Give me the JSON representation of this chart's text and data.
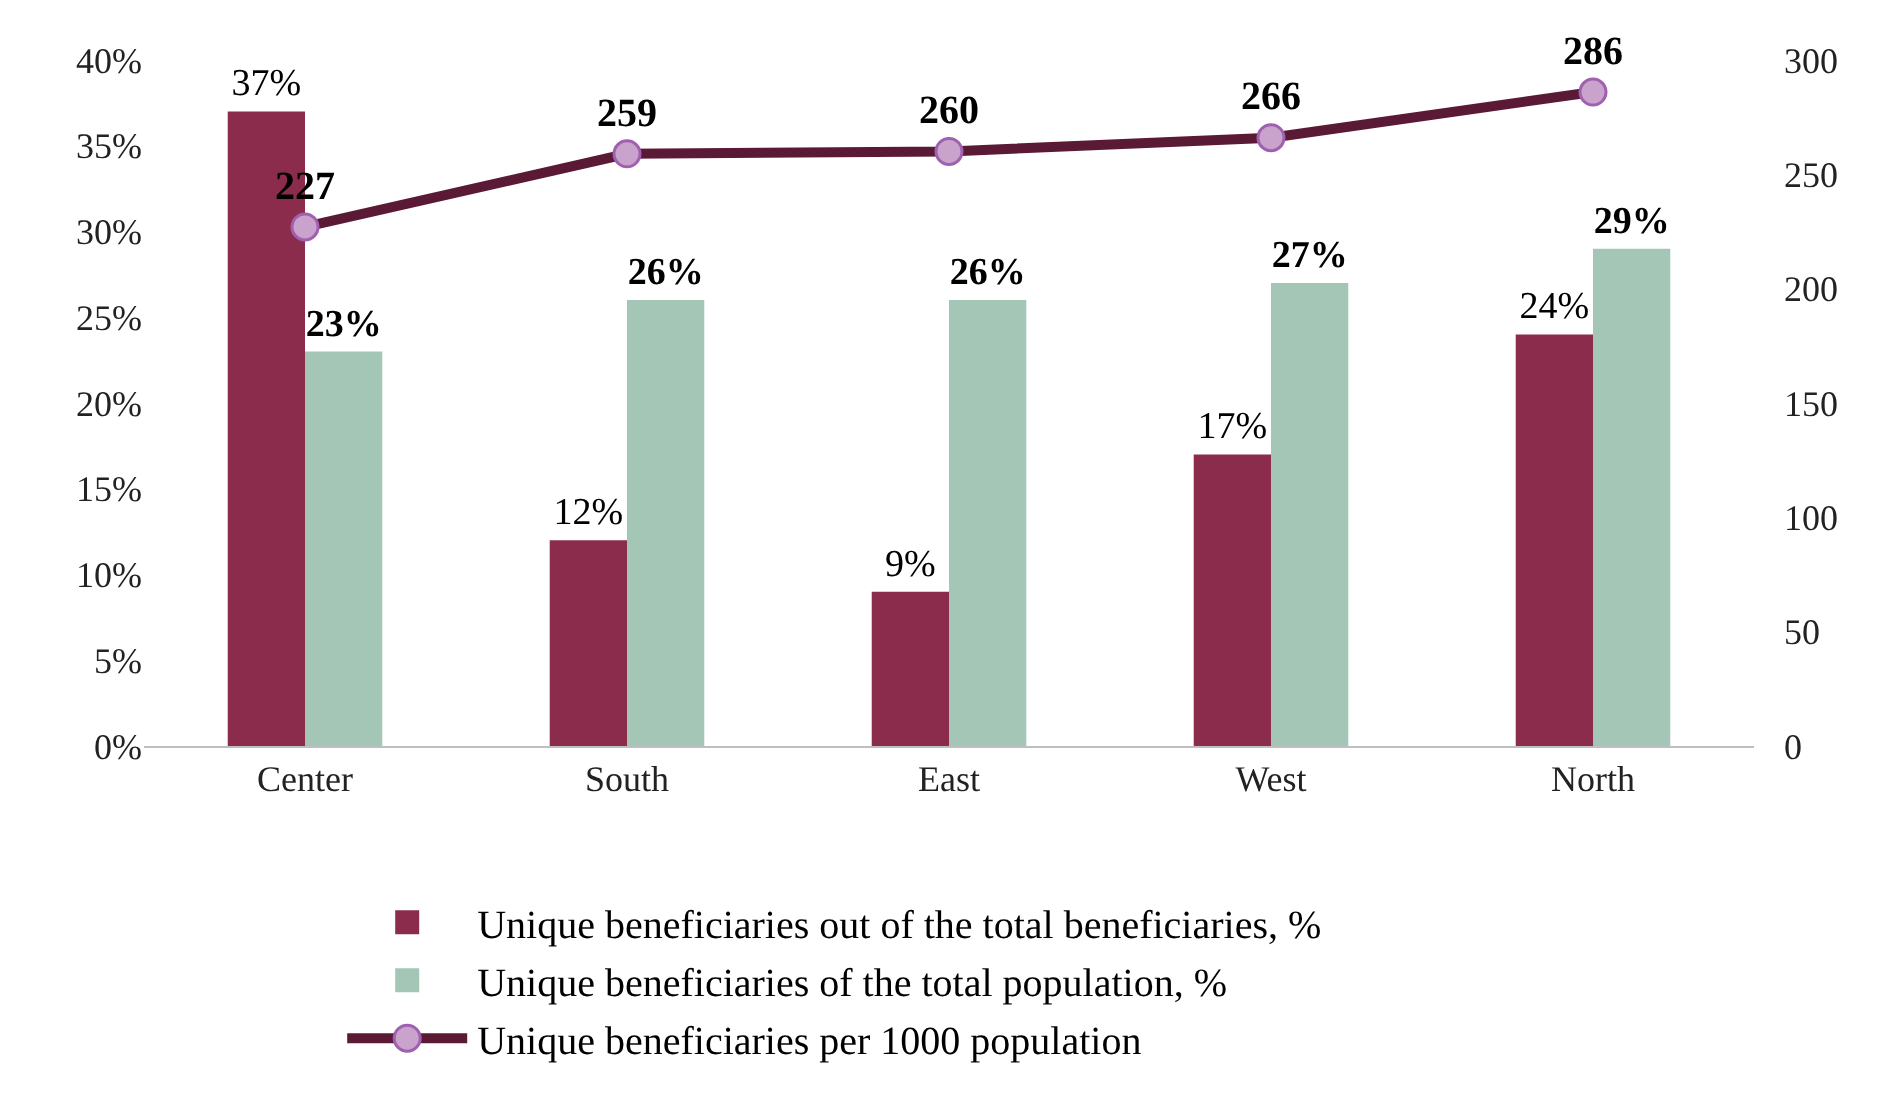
{
  "chart_data": {
    "type": "bar",
    "categories": [
      "Center",
      "South",
      "East",
      "West",
      "North"
    ],
    "series": [
      {
        "name": "Unique beneficiaries out of the total beneficiaries, %",
        "color": "#8b2c4c",
        "values": [
          37,
          12,
          9,
          17,
          24
        ],
        "value_labels": [
          "37%",
          "12%",
          "9%",
          "17%",
          "24%"
        ]
      },
      {
        "name": "Unique beneficiaries of the total population, %",
        "color": "#a3c6b6",
        "values": [
          23,
          26,
          26,
          27,
          29
        ],
        "value_labels": [
          "23%",
          "26%",
          "26%",
          "27%",
          "29%"
        ]
      },
      {
        "name": "Unique beneficiaries per 1000 population",
        "type": "line",
        "axis": "y2",
        "color": "#5a1a35",
        "marker": "circle",
        "line_style": "solid",
        "values": [
          227,
          259,
          260,
          266,
          286
        ],
        "value_labels": [
          "227",
          "259",
          "260",
          "266",
          "286"
        ]
      }
    ],
    "ylim": [
      0,
      40
    ],
    "yticks": [
      {
        "value": 0,
        "label": "0%"
      },
      {
        "value": 5,
        "label": "5%"
      },
      {
        "value": 10,
        "label": "10%"
      },
      {
        "value": 15,
        "label": "15%"
      },
      {
        "value": 20,
        "label": "20%"
      },
      {
        "value": 25,
        "label": "25%"
      },
      {
        "value": 30,
        "label": "30%"
      },
      {
        "value": 35,
        "label": "35%"
      },
      {
        "value": 40,
        "label": "40%"
      }
    ],
    "y2lim": [
      0,
      300
    ],
    "y2ticks": [
      0,
      50,
      100,
      150,
      200,
      250,
      300
    ],
    "grid": false,
    "legend": "bottom"
  }
}
